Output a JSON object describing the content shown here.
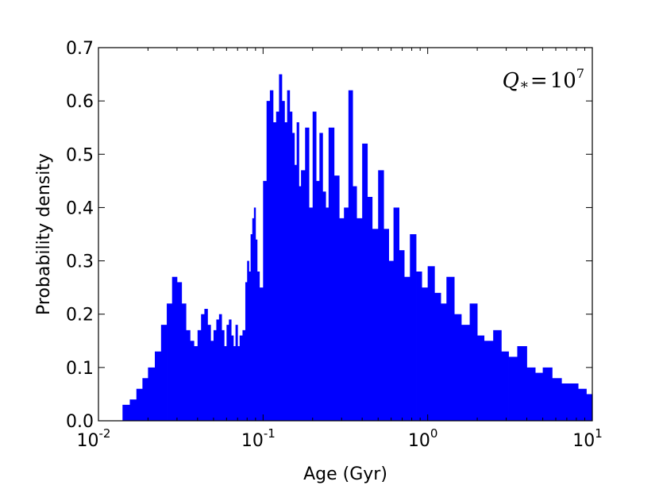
{
  "chart_data": {
    "type": "bar",
    "xlabel": "Age (Gyr)",
    "ylabel": "Probability density",
    "x_scale": "log",
    "xlim": [
      0.01,
      10
    ],
    "ylim": [
      0.0,
      0.7
    ],
    "x_ticks": [
      {
        "value": 0.01,
        "base": "10",
        "exp": "-2"
      },
      {
        "value": 0.1,
        "base": "10",
        "exp": "-1"
      },
      {
        "value": 1,
        "base": "10",
        "exp": "0"
      },
      {
        "value": 10,
        "base": "10",
        "exp": "1"
      }
    ],
    "y_ticks": [
      {
        "value": 0.0,
        "label": "0.0"
      },
      {
        "value": 0.1,
        "label": "0.1"
      },
      {
        "value": 0.2,
        "label": "0.2"
      },
      {
        "value": 0.3,
        "label": "0.3"
      },
      {
        "value": 0.4,
        "label": "0.4"
      },
      {
        "value": 0.5,
        "label": "0.5"
      },
      {
        "value": 0.6,
        "label": "0.6"
      },
      {
        "value": 0.7,
        "label": "0.7"
      }
    ],
    "annotation": {
      "symbol": "Q",
      "subscript": "*",
      "relation": "=",
      "base": "10",
      "exp": "7"
    },
    "color": "#0000ff",
    "grid": false,
    "series": [
      {
        "x": [
          0.014,
          0.0155,
          0.017,
          0.0185,
          0.02,
          0.022,
          0.024,
          0.026,
          0.028,
          0.03,
          0.032,
          0.034,
          0.036,
          0.038,
          0.04,
          0.042,
          0.044,
          0.046,
          0.048,
          0.05,
          0.052,
          0.054,
          0.056,
          0.058,
          0.06,
          0.062,
          0.064,
          0.066,
          0.068,
          0.07,
          0.072,
          0.075,
          0.078,
          0.08,
          0.082,
          0.084,
          0.086,
          0.088,
          0.09,
          0.092,
          0.095,
          0.1,
          0.105,
          0.11,
          0.115,
          0.12,
          0.125,
          0.13,
          0.135,
          0.14,
          0.145,
          0.15,
          0.155,
          0.16,
          0.165,
          0.17,
          0.18,
          0.19,
          0.2,
          0.21,
          0.22,
          0.23,
          0.24,
          0.25,
          0.27,
          0.29,
          0.31,
          0.33,
          0.35,
          0.37,
          0.4,
          0.43,
          0.46,
          0.5,
          0.54,
          0.58,
          0.62,
          0.67,
          0.72,
          0.78,
          0.85,
          0.92,
          1.0,
          1.1,
          1.2,
          1.3,
          1.45,
          1.6,
          1.8,
          2.0,
          2.2,
          2.5,
          2.8,
          3.1,
          3.5,
          4.0,
          4.5,
          5.0,
          5.7,
          6.5,
          7.3,
          8.2,
          9.2,
          10.0
        ],
        "values": [
          0.03,
          0.04,
          0.06,
          0.08,
          0.1,
          0.13,
          0.18,
          0.22,
          0.27,
          0.26,
          0.22,
          0.17,
          0.15,
          0.14,
          0.17,
          0.2,
          0.21,
          0.18,
          0.15,
          0.17,
          0.19,
          0.2,
          0.17,
          0.14,
          0.18,
          0.19,
          0.16,
          0.14,
          0.18,
          0.14,
          0.16,
          0.17,
          0.26,
          0.3,
          0.28,
          0.35,
          0.38,
          0.4,
          0.34,
          0.28,
          0.25,
          0.45,
          0.6,
          0.62,
          0.56,
          0.58,
          0.65,
          0.6,
          0.56,
          0.62,
          0.58,
          0.54,
          0.48,
          0.56,
          0.44,
          0.47,
          0.55,
          0.4,
          0.58,
          0.45,
          0.54,
          0.43,
          0.4,
          0.55,
          0.46,
          0.38,
          0.4,
          0.62,
          0.44,
          0.38,
          0.52,
          0.42,
          0.36,
          0.47,
          0.36,
          0.3,
          0.4,
          0.32,
          0.27,
          0.35,
          0.28,
          0.25,
          0.29,
          0.24,
          0.22,
          0.27,
          0.2,
          0.18,
          0.22,
          0.16,
          0.15,
          0.17,
          0.13,
          0.12,
          0.14,
          0.1,
          0.09,
          0.1,
          0.08,
          0.07,
          0.07,
          0.06,
          0.05,
          0.04
        ]
      }
    ]
  }
}
